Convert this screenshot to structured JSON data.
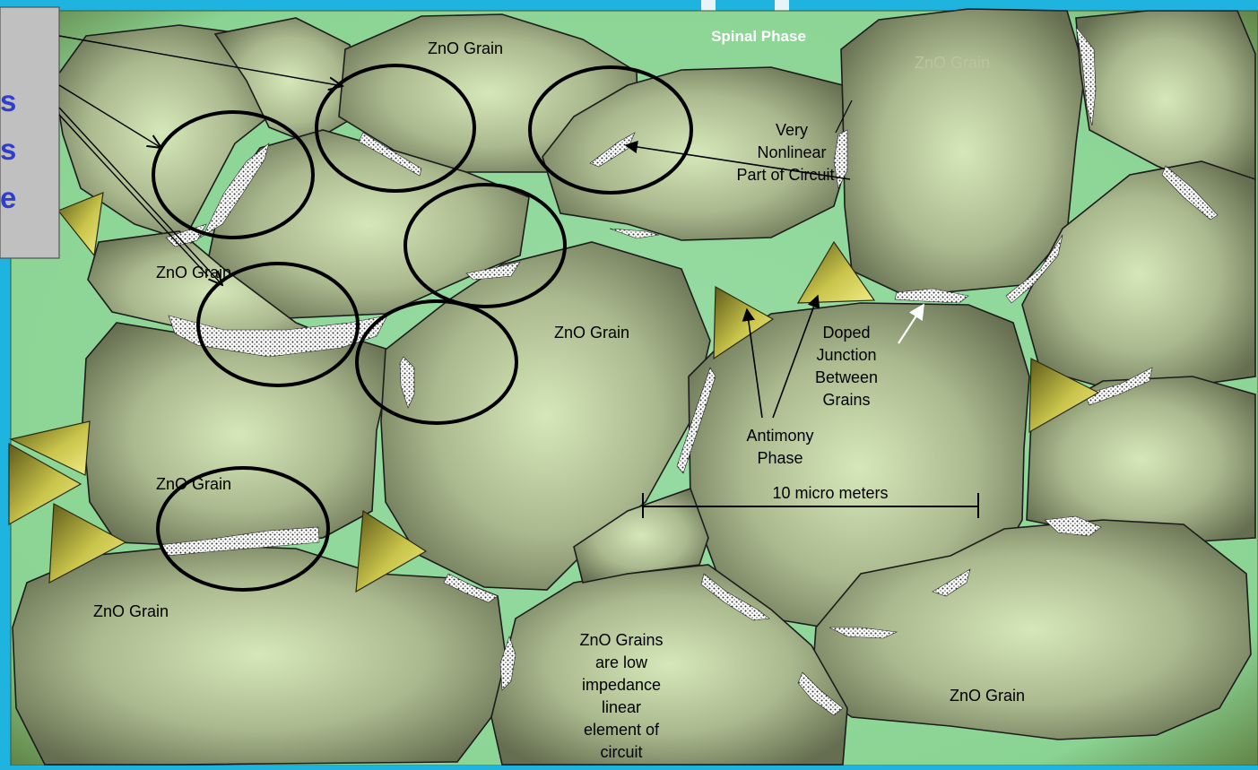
{
  "slide": {
    "left_panel_text": [
      "s",
      "s",
      "e"
    ]
  },
  "diagram": {
    "labels": {
      "spinal_phase": "Spinal Phase",
      "zno_grain_top": "ZnO Grain",
      "zno_grain_faded": "ZnO Grain",
      "zno_grain_left_upper": "ZnO Grain",
      "zno_grain_center": "ZnO Grain",
      "zno_grain_left_middle": "ZnO Grain",
      "zno_grain_bottom_left": "ZnO Grain",
      "zno_grain_bottom_right": "ZnO Grain",
      "very_nonlinear": [
        "Very",
        "Nonlinear",
        "Part of Circuit"
      ],
      "doped_junction": [
        "Doped",
        "Junction",
        "Between",
        "Grains"
      ],
      "antimony_phase": [
        "Antimony",
        "Phase"
      ],
      "scale_bar": "10 micro meters",
      "zno_grains_low_impedance": [
        "ZnO Grains",
        "are low",
        "impedance",
        "linear",
        "element of",
        "circuit"
      ]
    },
    "colors": {
      "background_blue": "#1fb3e0",
      "matrix_green": "#8fd89a",
      "grain_light": "#d2e4b6",
      "grain_dark": "#6e7758",
      "antimony_yellow": "#e6e068",
      "label_blue": "#2f3fcc"
    }
  }
}
